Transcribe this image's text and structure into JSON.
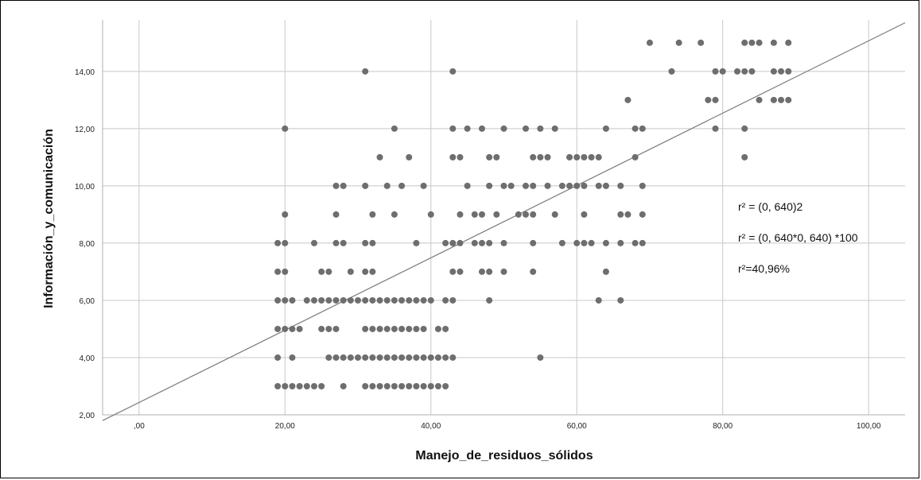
{
  "chart_data": {
    "type": "scatter",
    "xlabel": "Manejo_de_residuos_sólidos",
    "ylabel": "Información_y_comunicación",
    "xlim": [
      -5,
      105
    ],
    "ylim": [
      2,
      15.8
    ],
    "x_ticks": [
      0,
      20,
      40,
      60,
      80,
      100
    ],
    "x_tick_labels": [
      ",00",
      "20,00",
      "40,00",
      "60,00",
      "80,00",
      "100,00"
    ],
    "y_ticks": [
      2,
      4,
      6,
      8,
      10,
      12,
      14
    ],
    "y_tick_labels": [
      "2,00",
      "4,00",
      "6,00",
      "8,00",
      "10,00",
      "12,00",
      "14,00"
    ],
    "grid": true,
    "point_color": "#6e6e6e",
    "fit_line": {
      "x1": -5,
      "y1": 1.8,
      "x2": 105,
      "y2": 15.7,
      "color": "#7a7a7a"
    },
    "annotations": [
      "r² = (0, 640)2",
      "r² = (0, 640*0, 640) *100",
      "r²=40,96%"
    ],
    "points": [
      [
        70,
        15
      ],
      [
        74,
        15
      ],
      [
        77,
        15
      ],
      [
        83,
        15
      ],
      [
        84,
        15
      ],
      [
        85,
        15
      ],
      [
        87,
        15
      ],
      [
        89,
        15
      ],
      [
        31,
        14
      ],
      [
        43,
        14
      ],
      [
        73,
        14
      ],
      [
        79,
        14
      ],
      [
        80,
        14
      ],
      [
        82,
        14
      ],
      [
        83,
        14
      ],
      [
        84,
        14
      ],
      [
        87,
        14
      ],
      [
        88,
        14
      ],
      [
        89,
        14
      ],
      [
        67,
        13
      ],
      [
        78,
        13
      ],
      [
        79,
        13
      ],
      [
        85,
        13
      ],
      [
        87,
        13
      ],
      [
        88,
        13
      ],
      [
        89,
        13
      ],
      [
        20,
        12
      ],
      [
        35,
        12
      ],
      [
        43,
        12
      ],
      [
        45,
        12
      ],
      [
        47,
        12
      ],
      [
        50,
        12
      ],
      [
        53,
        12
      ],
      [
        55,
        12
      ],
      [
        57,
        12
      ],
      [
        64,
        12
      ],
      [
        68,
        12
      ],
      [
        69,
        12
      ],
      [
        79,
        12
      ],
      [
        83,
        12
      ],
      [
        33,
        11
      ],
      [
        37,
        11
      ],
      [
        43,
        11
      ],
      [
        44,
        11
      ],
      [
        48,
        11
      ],
      [
        49,
        11
      ],
      [
        54,
        11
      ],
      [
        55,
        11
      ],
      [
        56,
        11
      ],
      [
        59,
        11
      ],
      [
        60,
        11
      ],
      [
        61,
        11
      ],
      [
        62,
        11
      ],
      [
        63,
        11
      ],
      [
        68,
        11
      ],
      [
        83,
        11
      ],
      [
        27,
        10
      ],
      [
        28,
        10
      ],
      [
        31,
        10
      ],
      [
        34,
        10
      ],
      [
        36,
        10
      ],
      [
        39,
        10
      ],
      [
        45,
        10
      ],
      [
        48,
        10
      ],
      [
        50,
        10
      ],
      [
        51,
        10
      ],
      [
        53,
        10
      ],
      [
        54,
        10
      ],
      [
        56,
        10
      ],
      [
        58,
        10
      ],
      [
        59,
        10
      ],
      [
        60,
        10
      ],
      [
        61,
        10
      ],
      [
        63,
        10
      ],
      [
        64,
        10
      ],
      [
        66,
        10
      ],
      [
        69,
        10
      ],
      [
        20,
        9
      ],
      [
        27,
        9
      ],
      [
        32,
        9
      ],
      [
        35,
        9
      ],
      [
        40,
        9
      ],
      [
        44,
        9
      ],
      [
        46,
        9
      ],
      [
        47,
        9
      ],
      [
        49,
        9
      ],
      [
        52,
        9
      ],
      [
        53,
        9
      ],
      [
        54,
        9
      ],
      [
        57,
        9
      ],
      [
        61,
        9
      ],
      [
        66,
        9
      ],
      [
        67,
        9
      ],
      [
        69,
        9
      ],
      [
        19,
        8
      ],
      [
        20,
        8
      ],
      [
        24,
        8
      ],
      [
        27,
        8
      ],
      [
        28,
        8
      ],
      [
        31,
        8
      ],
      [
        32,
        8
      ],
      [
        38,
        8
      ],
      [
        42,
        8
      ],
      [
        43,
        8
      ],
      [
        44,
        8
      ],
      [
        46,
        8
      ],
      [
        47,
        8
      ],
      [
        48,
        8
      ],
      [
        50,
        8
      ],
      [
        54,
        8
      ],
      [
        58,
        8
      ],
      [
        60,
        8
      ],
      [
        61,
        8
      ],
      [
        62,
        8
      ],
      [
        64,
        8
      ],
      [
        66,
        8
      ],
      [
        68,
        8
      ],
      [
        69,
        8
      ],
      [
        19,
        7
      ],
      [
        20,
        7
      ],
      [
        25,
        7
      ],
      [
        26,
        7
      ],
      [
        29,
        7
      ],
      [
        31,
        7
      ],
      [
        32,
        7
      ],
      [
        43,
        7
      ],
      [
        44,
        7
      ],
      [
        47,
        7
      ],
      [
        48,
        7
      ],
      [
        50,
        7
      ],
      [
        54,
        7
      ],
      [
        64,
        7
      ],
      [
        19,
        6
      ],
      [
        20,
        6
      ],
      [
        21,
        6
      ],
      [
        23,
        6
      ],
      [
        24,
        6
      ],
      [
        25,
        6
      ],
      [
        26,
        6
      ],
      [
        27,
        6
      ],
      [
        28,
        6
      ],
      [
        29,
        6
      ],
      [
        30,
        6
      ],
      [
        31,
        6
      ],
      [
        32,
        6
      ],
      [
        33,
        6
      ],
      [
        34,
        6
      ],
      [
        35,
        6
      ],
      [
        36,
        6
      ],
      [
        37,
        6
      ],
      [
        38,
        6
      ],
      [
        39,
        6
      ],
      [
        40,
        6
      ],
      [
        42,
        6
      ],
      [
        43,
        6
      ],
      [
        48,
        6
      ],
      [
        63,
        6
      ],
      [
        66,
        6
      ],
      [
        19,
        5
      ],
      [
        20,
        5
      ],
      [
        21,
        5
      ],
      [
        22,
        5
      ],
      [
        25,
        5
      ],
      [
        26,
        5
      ],
      [
        27,
        5
      ],
      [
        31,
        5
      ],
      [
        32,
        5
      ],
      [
        33,
        5
      ],
      [
        34,
        5
      ],
      [
        35,
        5
      ],
      [
        36,
        5
      ],
      [
        37,
        5
      ],
      [
        38,
        5
      ],
      [
        39,
        5
      ],
      [
        41,
        5
      ],
      [
        42,
        5
      ],
      [
        19,
        4
      ],
      [
        21,
        4
      ],
      [
        26,
        4
      ],
      [
        27,
        4
      ],
      [
        28,
        4
      ],
      [
        29,
        4
      ],
      [
        30,
        4
      ],
      [
        31,
        4
      ],
      [
        32,
        4
      ],
      [
        33,
        4
      ],
      [
        34,
        4
      ],
      [
        35,
        4
      ],
      [
        36,
        4
      ],
      [
        37,
        4
      ],
      [
        38,
        4
      ],
      [
        39,
        4
      ],
      [
        40,
        4
      ],
      [
        41,
        4
      ],
      [
        42,
        4
      ],
      [
        43,
        4
      ],
      [
        55,
        4
      ],
      [
        19,
        3
      ],
      [
        20,
        3
      ],
      [
        21,
        3
      ],
      [
        22,
        3
      ],
      [
        23,
        3
      ],
      [
        24,
        3
      ],
      [
        25,
        3
      ],
      [
        28,
        3
      ],
      [
        31,
        3
      ],
      [
        32,
        3
      ],
      [
        33,
        3
      ],
      [
        34,
        3
      ],
      [
        35,
        3
      ],
      [
        36,
        3
      ],
      [
        37,
        3
      ],
      [
        38,
        3
      ],
      [
        39,
        3
      ],
      [
        40,
        3
      ],
      [
        41,
        3
      ],
      [
        42,
        3
      ]
    ]
  }
}
